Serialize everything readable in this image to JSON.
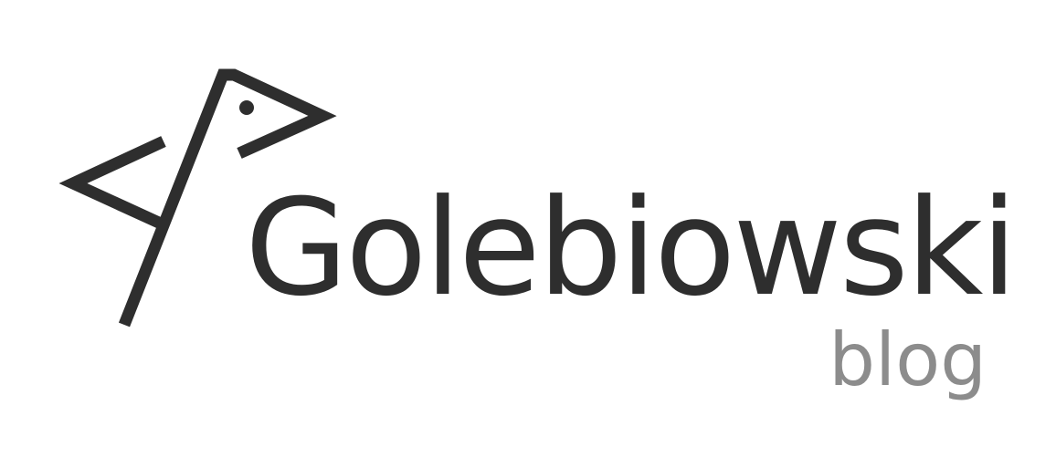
{
  "logo": {
    "name": "Golebiowski",
    "tagline": "blog",
    "icon": "pigeon-icon"
  },
  "colors": {
    "background": "#ffffff",
    "primary": "#2e2e2e",
    "secondary": "#8c8c8c"
  }
}
